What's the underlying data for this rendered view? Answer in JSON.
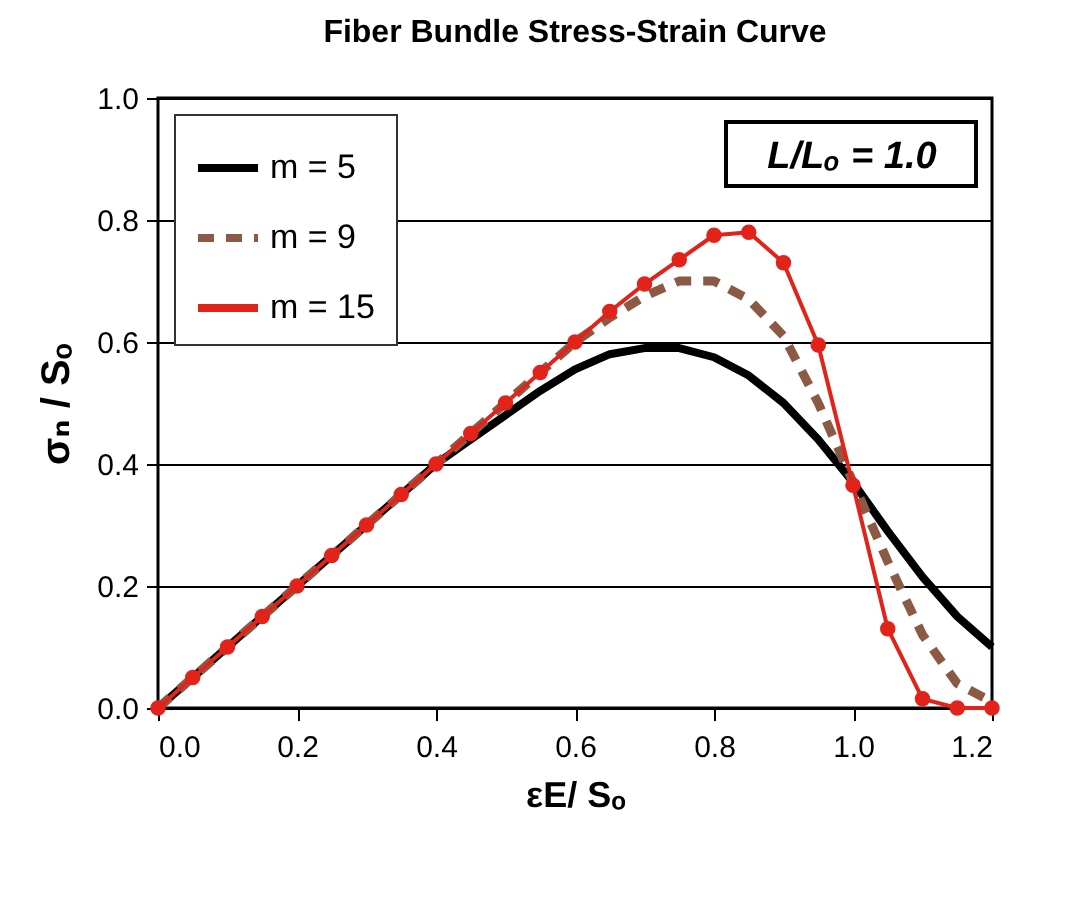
{
  "chart_data": {
    "type": "line",
    "title": "Fiber Bundle Stress-Strain Curve",
    "xlabel": "εE/ Sₒ",
    "ylabel": "σₙ / Sₒ",
    "annotations": [
      "L/Lₒ = 1.0"
    ],
    "x": [
      0,
      0.05,
      0.1,
      0.15,
      0.2,
      0.25,
      0.3,
      0.35,
      0.4,
      0.45,
      0.5,
      0.55,
      0.6,
      0.65,
      0.7,
      0.75,
      0.8,
      0.85,
      0.9,
      0.95,
      1.0,
      1.05,
      1.1,
      1.15,
      1.2
    ],
    "series": [
      {
        "name": "m = 5",
        "color": "#000000",
        "line_style": "solid",
        "values": [
          0,
          0.05,
          0.1,
          0.15,
          0.2,
          0.25,
          0.3,
          0.35,
          0.4,
          0.44,
          0.48,
          0.52,
          0.555,
          0.58,
          0.59,
          0.59,
          0.575,
          0.545,
          0.5,
          0.44,
          0.37,
          0.29,
          0.215,
          0.15,
          0.1
        ]
      },
      {
        "name": "m = 9",
        "color": "#8c5a44",
        "line_style": "dashed",
        "values": [
          0,
          0.05,
          0.1,
          0.15,
          0.2,
          0.25,
          0.3,
          0.35,
          0.4,
          0.45,
          0.5,
          0.55,
          0.6,
          0.64,
          0.675,
          0.7,
          0.7,
          0.67,
          0.61,
          0.5,
          0.37,
          0.24,
          0.12,
          0.04,
          0.01
        ]
      },
      {
        "name": "m = 15",
        "color": "#e2231a",
        "line_style": "solid",
        "marker": "circle",
        "values": [
          0,
          0.05,
          0.1,
          0.15,
          0.2,
          0.25,
          0.3,
          0.35,
          0.4,
          0.45,
          0.5,
          0.55,
          0.6,
          0.65,
          0.695,
          0.735,
          0.775,
          0.78,
          0.73,
          0.595,
          0.365,
          0.13,
          0.015,
          0,
          0
        ]
      }
    ],
    "xlim": [
      0,
      1.2
    ],
    "ylim": [
      0,
      1.0
    ],
    "xticks": [
      {
        "value": 0,
        "label": "0.0"
      },
      {
        "value": 0.2,
        "label": "0.2"
      },
      {
        "value": 0.4,
        "label": "0.4"
      },
      {
        "value": 0.6,
        "label": "0.6"
      },
      {
        "value": 0.8,
        "label": "0.8"
      },
      {
        "value": 1.0,
        "label": "1.0"
      },
      {
        "value": 1.2,
        "label": "1.2"
      }
    ],
    "yticks": [
      {
        "value": 0,
        "label": "0.0"
      },
      {
        "value": 0.2,
        "label": "0.2"
      },
      {
        "value": 0.4,
        "label": "0.4"
      },
      {
        "value": 0.6,
        "label": "0.6"
      },
      {
        "value": 0.8,
        "label": "0.8"
      },
      {
        "value": 1.0,
        "label": "1.0"
      }
    ],
    "grid": "y",
    "legend": "top left"
  }
}
